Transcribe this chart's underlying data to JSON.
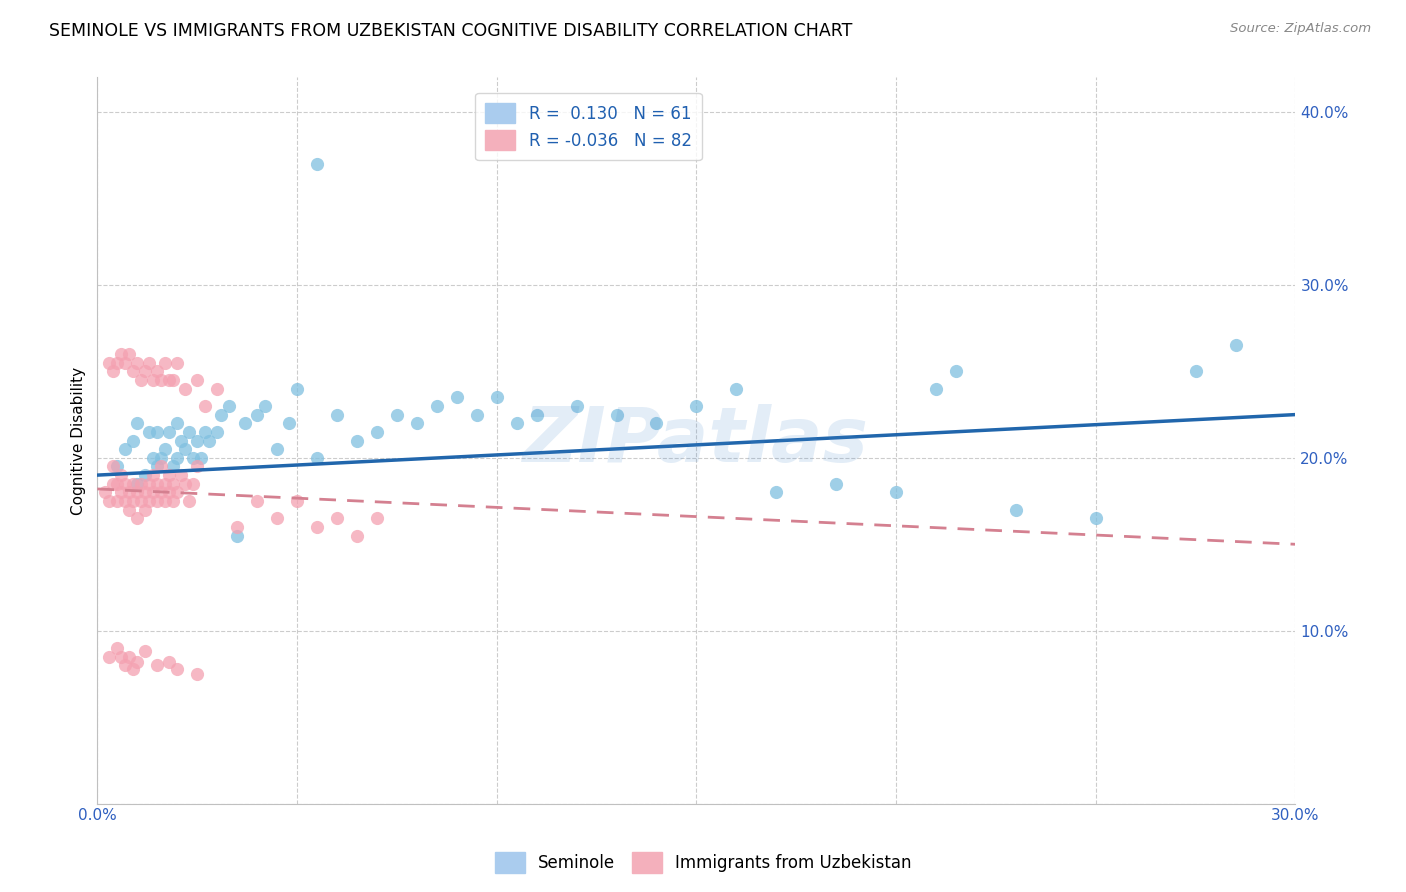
{
  "title": "SEMINOLE VS IMMIGRANTS FROM UZBEKISTAN COGNITIVE DISABILITY CORRELATION CHART",
  "source": "Source: ZipAtlas.com",
  "ylabel": "Cognitive Disability",
  "xlim": [
    0.0,
    0.3
  ],
  "ylim": [
    0.0,
    0.42
  ],
  "xtick_vals": [
    0.0,
    0.05,
    0.1,
    0.15,
    0.2,
    0.25,
    0.3
  ],
  "xtick_labels": [
    "0.0%",
    "",
    "",
    "",
    "",
    "",
    "30.0%"
  ],
  "ytick_vals": [
    0.0,
    0.1,
    0.2,
    0.3,
    0.4
  ],
  "ytick_labels": [
    "",
    "10.0%",
    "20.0%",
    "30.0%",
    "40.0%"
  ],
  "legend1_R": "0.130",
  "legend1_N": "61",
  "legend2_R": "-0.036",
  "legend2_N": "82",
  "blue_scatter_color": "#7fbfdf",
  "pink_scatter_color": "#f4a0b0",
  "blue_line_color": "#2166ac",
  "pink_line_color": "#d48090",
  "watermark": "ZIPatlas",
  "blue_trend_x": [
    0.0,
    0.3
  ],
  "blue_trend_y": [
    0.19,
    0.225
  ],
  "pink_trend_x": [
    0.0,
    0.3
  ],
  "pink_trend_y": [
    0.182,
    0.15
  ],
  "seminole_x": [
    0.005,
    0.007,
    0.009,
    0.01,
    0.01,
    0.012,
    0.013,
    0.014,
    0.015,
    0.015,
    0.016,
    0.017,
    0.018,
    0.019,
    0.02,
    0.02,
    0.021,
    0.022,
    0.023,
    0.024,
    0.025,
    0.026,
    0.027,
    0.028,
    0.03,
    0.031,
    0.033,
    0.035,
    0.037,
    0.04,
    0.042,
    0.045,
    0.048,
    0.05,
    0.055,
    0.06,
    0.065,
    0.07,
    0.075,
    0.08,
    0.085,
    0.09,
    0.095,
    0.1,
    0.105,
    0.11,
    0.12,
    0.13,
    0.14,
    0.15,
    0.16,
    0.17,
    0.185,
    0.2,
    0.21,
    0.215,
    0.23,
    0.25,
    0.275,
    0.285,
    0.055
  ],
  "seminole_y": [
    0.195,
    0.205,
    0.21,
    0.185,
    0.22,
    0.19,
    0.215,
    0.2,
    0.195,
    0.215,
    0.2,
    0.205,
    0.215,
    0.195,
    0.2,
    0.22,
    0.21,
    0.205,
    0.215,
    0.2,
    0.21,
    0.2,
    0.215,
    0.21,
    0.215,
    0.225,
    0.23,
    0.155,
    0.22,
    0.225,
    0.23,
    0.205,
    0.22,
    0.24,
    0.2,
    0.225,
    0.21,
    0.215,
    0.225,
    0.22,
    0.23,
    0.235,
    0.225,
    0.235,
    0.22,
    0.225,
    0.23,
    0.225,
    0.22,
    0.23,
    0.24,
    0.18,
    0.185,
    0.18,
    0.24,
    0.25,
    0.17,
    0.165,
    0.25,
    0.265,
    0.37
  ],
  "uzbek_x": [
    0.002,
    0.003,
    0.004,
    0.004,
    0.005,
    0.005,
    0.006,
    0.006,
    0.007,
    0.007,
    0.008,
    0.008,
    0.009,
    0.009,
    0.01,
    0.01,
    0.011,
    0.011,
    0.012,
    0.012,
    0.013,
    0.013,
    0.014,
    0.014,
    0.015,
    0.015,
    0.016,
    0.016,
    0.017,
    0.017,
    0.018,
    0.018,
    0.019,
    0.019,
    0.02,
    0.021,
    0.022,
    0.023,
    0.024,
    0.025,
    0.003,
    0.004,
    0.005,
    0.006,
    0.007,
    0.008,
    0.009,
    0.01,
    0.011,
    0.012,
    0.013,
    0.014,
    0.015,
    0.016,
    0.017,
    0.018,
    0.019,
    0.02,
    0.022,
    0.025,
    0.027,
    0.03,
    0.035,
    0.04,
    0.045,
    0.05,
    0.055,
    0.06,
    0.065,
    0.07,
    0.003,
    0.005,
    0.006,
    0.007,
    0.008,
    0.009,
    0.01,
    0.012,
    0.015,
    0.018,
    0.02,
    0.025
  ],
  "uzbek_y": [
    0.18,
    0.175,
    0.185,
    0.195,
    0.175,
    0.185,
    0.18,
    0.19,
    0.175,
    0.185,
    0.17,
    0.18,
    0.175,
    0.185,
    0.165,
    0.18,
    0.175,
    0.185,
    0.17,
    0.18,
    0.185,
    0.175,
    0.18,
    0.19,
    0.175,
    0.185,
    0.18,
    0.195,
    0.175,
    0.185,
    0.18,
    0.19,
    0.175,
    0.185,
    0.18,
    0.19,
    0.185,
    0.175,
    0.185,
    0.195,
    0.255,
    0.25,
    0.255,
    0.26,
    0.255,
    0.26,
    0.25,
    0.255,
    0.245,
    0.25,
    0.255,
    0.245,
    0.25,
    0.245,
    0.255,
    0.245,
    0.245,
    0.255,
    0.24,
    0.245,
    0.23,
    0.24,
    0.16,
    0.175,
    0.165,
    0.175,
    0.16,
    0.165,
    0.155,
    0.165,
    0.085,
    0.09,
    0.085,
    0.08,
    0.085,
    0.078,
    0.082,
    0.088,
    0.08,
    0.082,
    0.078,
    0.075
  ]
}
